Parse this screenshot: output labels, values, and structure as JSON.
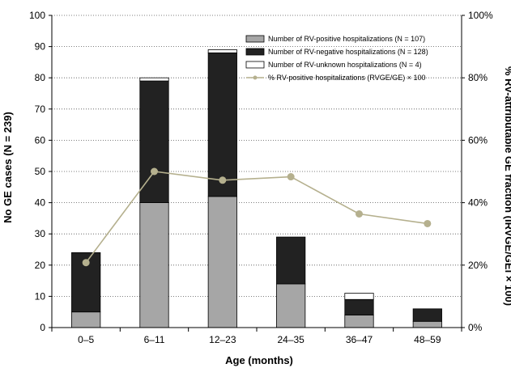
{
  "chart_data": {
    "type": "bar",
    "stacked": true,
    "categories": [
      "0–5",
      "6–11",
      "12–23",
      "24–35",
      "36–47",
      "48–59"
    ],
    "xlabel": "Age (months)",
    "ylabel": "No GE cases (N = 239)",
    "y2label": "% RV-attributable GE fraction (IRVGE/GEl × 100)",
    "ylim": [
      0,
      100
    ],
    "yticks": [
      "0",
      "10",
      "20",
      "30",
      "40",
      "50",
      "60",
      "70",
      "80",
      "90",
      "100"
    ],
    "y2lim": [
      0,
      100
    ],
    "y2ticks": [
      "0%",
      "20%",
      "40%",
      "60%",
      "80%",
      "100%"
    ],
    "grid": "horizontal dotted",
    "legend_position": "top-right",
    "series": [
      {
        "name": "Number of RV-positive hospitalizations (N = 107)",
        "kind": "bar",
        "color": "#a6a6a6",
        "values": [
          5,
          40,
          42,
          14,
          4,
          2
        ]
      },
      {
        "name": "Number of RV-negative hospitalizations (N = 128)",
        "kind": "bar",
        "color": "#222222",
        "values": [
          19,
          39,
          46,
          15,
          5,
          4
        ]
      },
      {
        "name": "Number of RV-unknown hospitalizations (N = 4)",
        "kind": "bar",
        "color": "#ffffff",
        "values": [
          0,
          1,
          1,
          0,
          2,
          0
        ]
      },
      {
        "name": "% RV-positive hospitalizations (RVGE/GE) × 100",
        "kind": "line",
        "axis": "right",
        "color": "#b5b08e",
        "values": [
          20.8,
          50.0,
          47.2,
          48.3,
          36.4,
          33.3
        ]
      }
    ]
  }
}
